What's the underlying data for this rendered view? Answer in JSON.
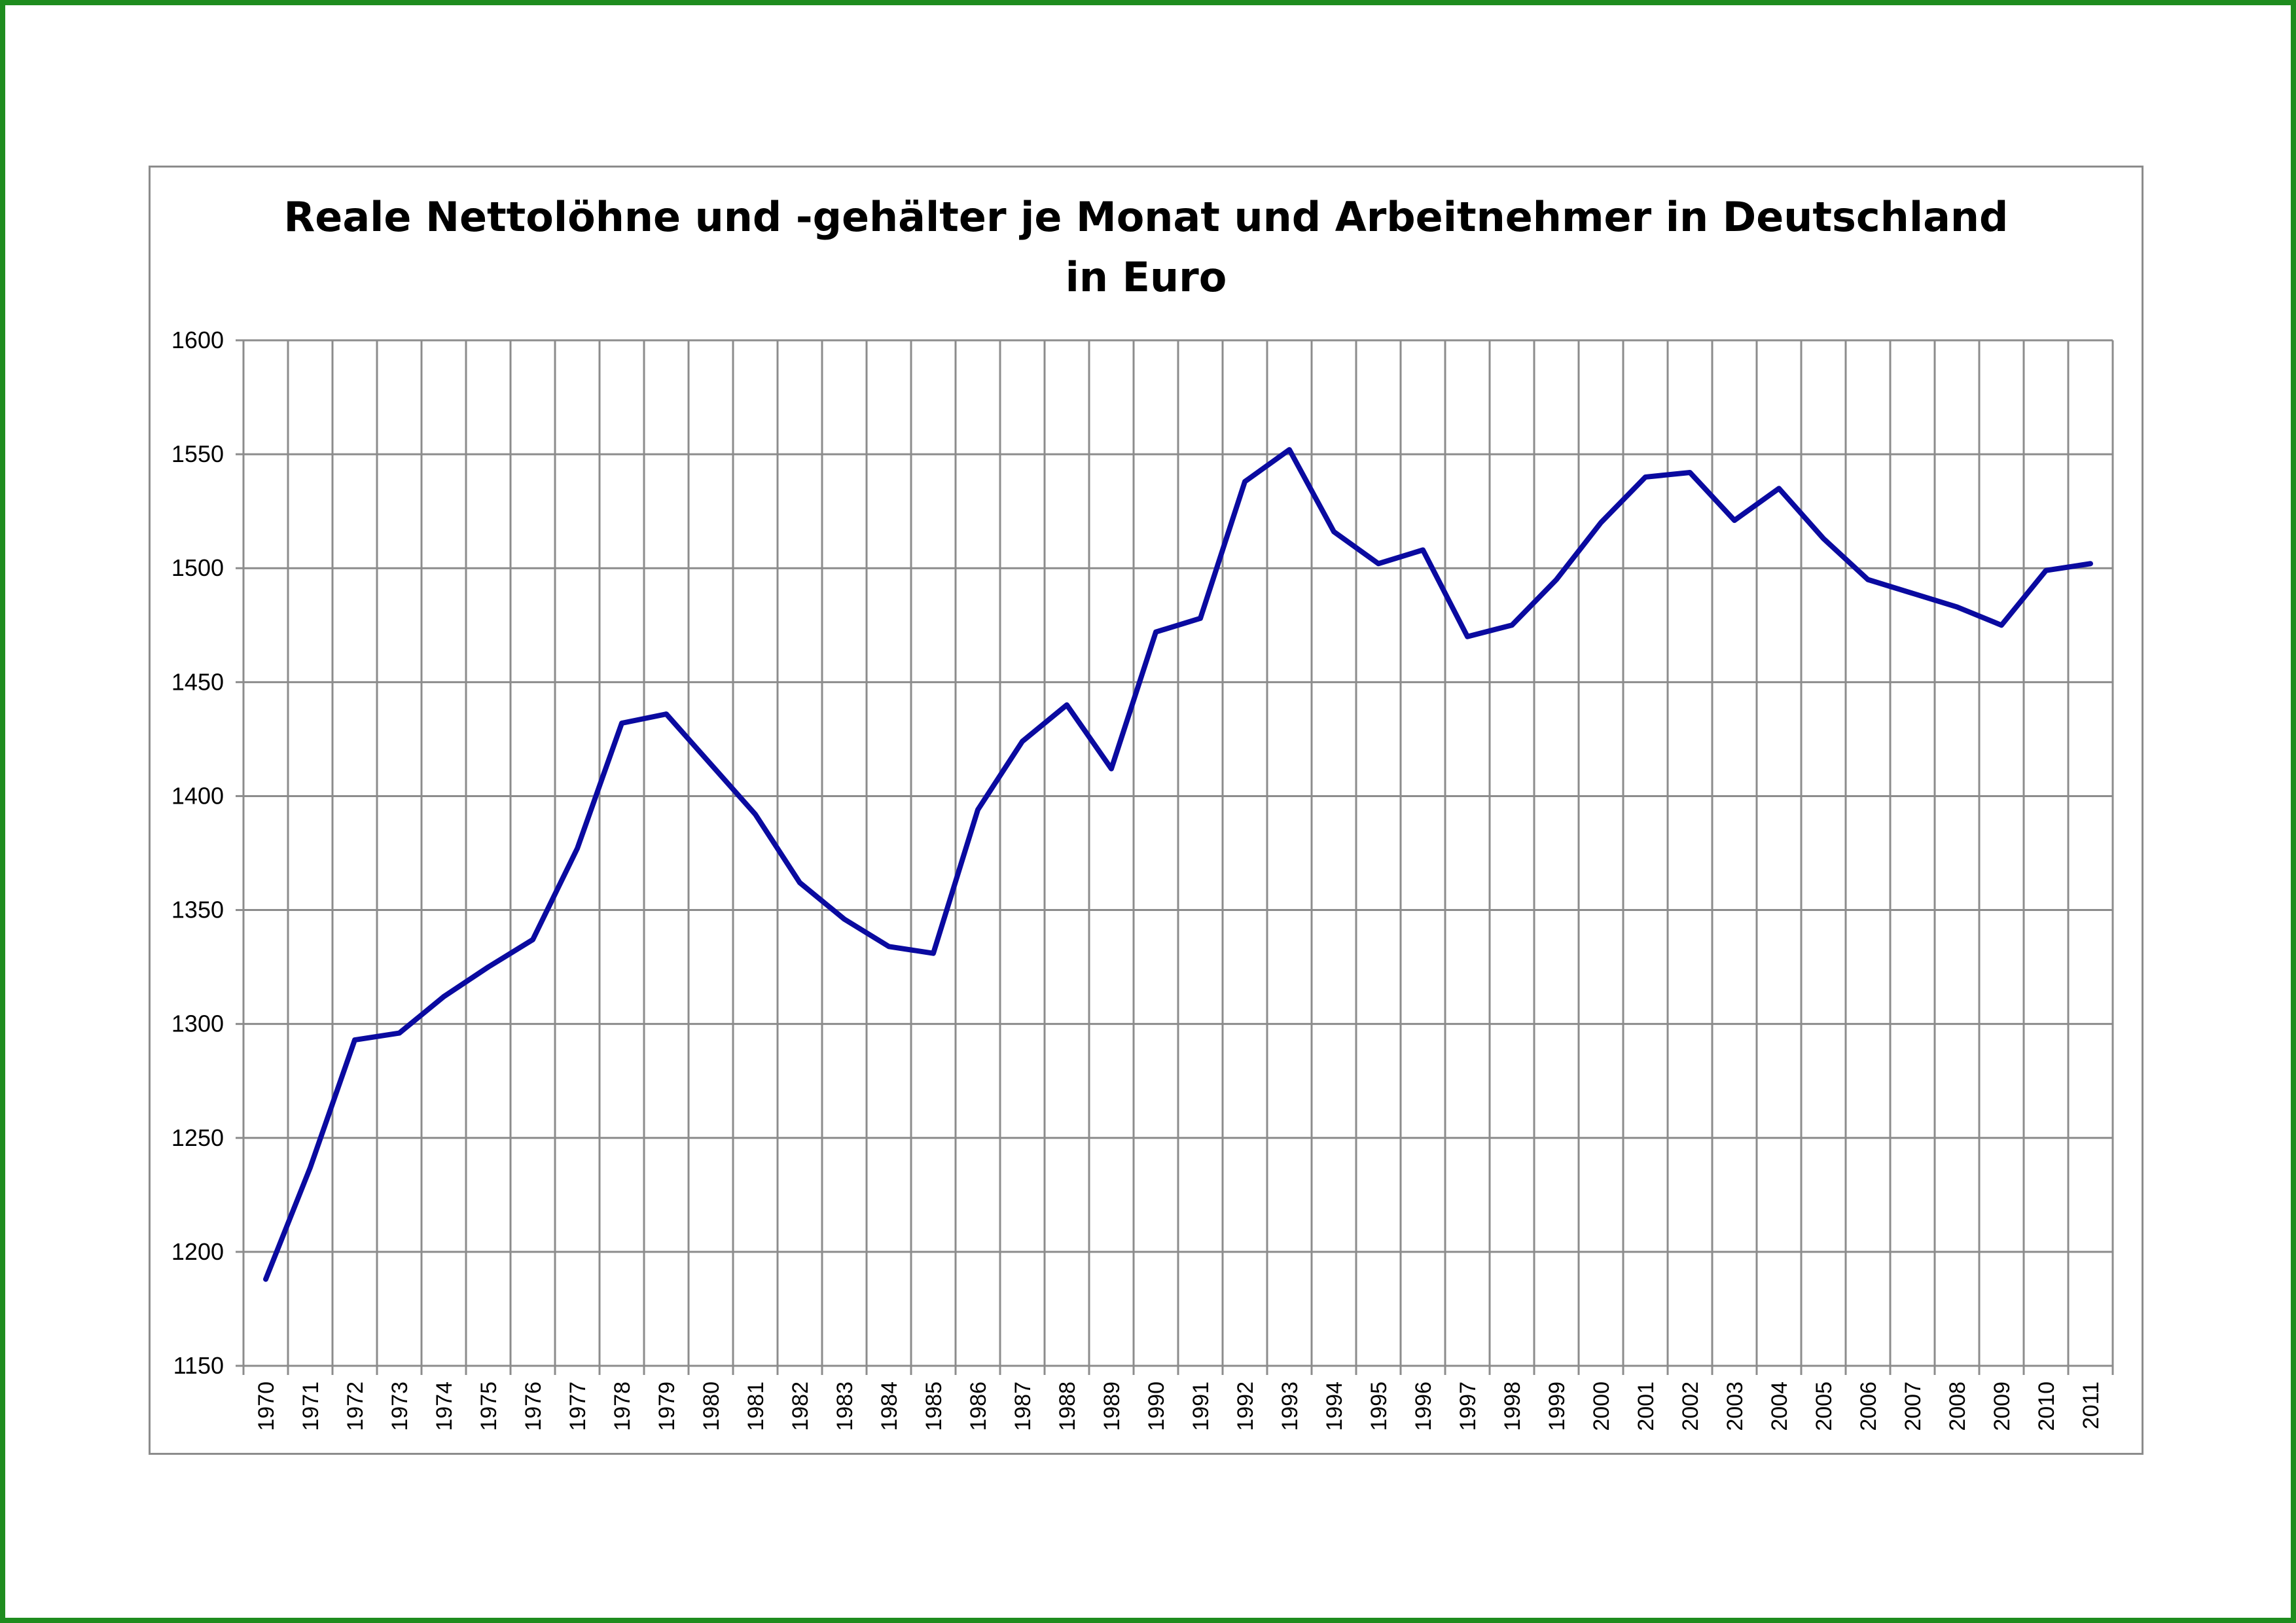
{
  "chart_data": {
    "type": "line",
    "title_lines": [
      "Reale Nettolöhne und -gehälter je Monat und Arbeitnehmer in Deutschland",
      "in Euro"
    ],
    "xlabel": "",
    "ylabel": "",
    "ylim": [
      1150,
      1600
    ],
    "yticks": [
      1150,
      1200,
      1250,
      1300,
      1350,
      1400,
      1450,
      1500,
      1550,
      1600
    ],
    "grid": true,
    "legend": "none",
    "categories": [
      "1970",
      "1971",
      "1972",
      "1973",
      "1974",
      "1975",
      "1976",
      "1977",
      "1978",
      "1979",
      "1980",
      "1981",
      "1982",
      "1983",
      "1984",
      "1985",
      "1986",
      "1987",
      "1988",
      "1989",
      "1990",
      "1991",
      "1992",
      "1993",
      "1994",
      "1995",
      "1996",
      "1997",
      "1998",
      "1999",
      "2000",
      "2001",
      "2002",
      "2003",
      "2004",
      "2005",
      "2006",
      "2007",
      "2008",
      "2009",
      "2010",
      "2011"
    ],
    "series": [
      {
        "values": [
          1188,
          1237,
          1293,
          1296,
          1312,
          1325,
          1337,
          1377,
          1432,
          1436,
          1414,
          1392,
          1362,
          1346,
          1334,
          1331,
          1394,
          1424,
          1440,
          1412,
          1472,
          1478,
          1538,
          1552,
          1516,
          1502,
          1508,
          1470,
          1475,
          1495,
          1520,
          1540,
          1542,
          1521,
          1535,
          1513,
          1495,
          1489,
          1483,
          1475,
          1499,
          1502
        ],
        "color": "#0a0aa0"
      }
    ]
  },
  "colors": {
    "frame": "#1e8c1e",
    "chart_border": "#8c8c8c",
    "grid": "#8c8c8c",
    "line": "#0a0aa0"
  }
}
